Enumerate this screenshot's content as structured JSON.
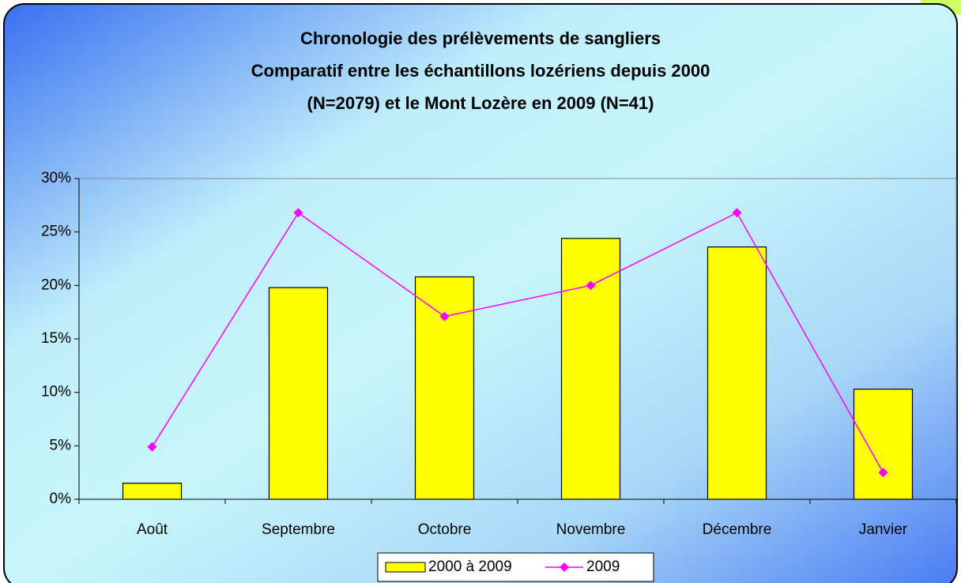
{
  "chart_data": {
    "type": "bar",
    "title": [
      "Chronologie des prélèvements de sangliers",
      "Comparatif entre les échantillons lozériens depuis 2000",
      "(N=2079) et  le Mont Lozère en 2009 (N=41)"
    ],
    "categories": [
      "Août",
      "Septembre",
      "Octobre",
      "Novembre",
      "Décembre",
      "Janvier"
    ],
    "series": [
      {
        "name": "2000 à 2009",
        "type": "bar",
        "color": "#ffff00",
        "values": [
          1.5,
          19.8,
          20.8,
          24.4,
          23.6,
          10.3
        ]
      },
      {
        "name": "2009",
        "type": "line",
        "color": "#ff00ff",
        "values": [
          4.9,
          26.8,
          17.1,
          20,
          26.8,
          2.5
        ]
      }
    ],
    "ylim": [
      0,
      30
    ],
    "yticks": [
      {
        "value": 0,
        "label": "0%"
      },
      {
        "value": 5,
        "label": "5%"
      },
      {
        "value": 10,
        "label": "10%"
      },
      {
        "value": 15,
        "label": "15%"
      },
      {
        "value": 20,
        "label": "20%"
      },
      {
        "value": 25,
        "label": "25%"
      },
      {
        "value": 30,
        "label": "30%"
      }
    ],
    "legend": "bottom"
  }
}
